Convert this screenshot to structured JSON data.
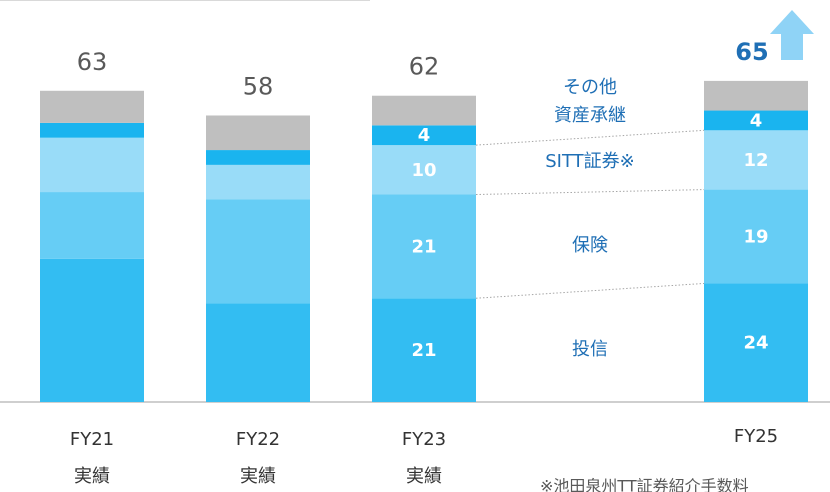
{
  "chart_data": {
    "type": "stacked_bar",
    "categories": [
      "FY21",
      "FY22",
      "FY23",
      "FY25"
    ],
    "category_sublabels": [
      "実績",
      "実績",
      "実績",
      null
    ],
    "totals": [
      63,
      58,
      62,
      65
    ],
    "series": [
      {
        "name": "投信",
        "color": "#33bdf2",
        "values": [
          29,
          20,
          21,
          24
        ],
        "value_labels": [
          null,
          null,
          "21",
          "24"
        ]
      },
      {
        "name": "保険",
        "color": "#66cdf5",
        "values": [
          13.5,
          21,
          21,
          19
        ],
        "value_labels": [
          null,
          null,
          "21",
          "19"
        ]
      },
      {
        "name": "SITT証券※",
        "color": "#99dcf8",
        "values": [
          11,
          7,
          10,
          12
        ],
        "value_labels": [
          null,
          null,
          "10",
          "12"
        ]
      },
      {
        "name": "資産承継",
        "color": "#1ab4ef",
        "values": [
          3,
          3,
          4,
          4
        ],
        "value_labels": [
          null,
          null,
          "4",
          "4"
        ]
      },
      {
        "name": "その他",
        "color": "#bfbfbf",
        "values": [
          6.5,
          7,
          6,
          6
        ],
        "value_labels": [
          null,
          null,
          null,
          null
        ]
      }
    ],
    "ylim": [
      0,
      80
    ],
    "footnote": "※池田泉州TT証券紹介手数料"
  }
}
